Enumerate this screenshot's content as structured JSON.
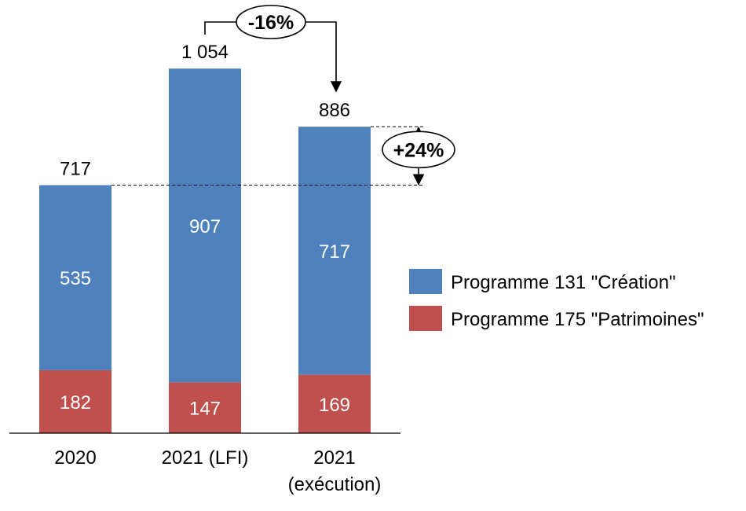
{
  "colors": {
    "series1": "#4F81BD",
    "series2": "#C0504D",
    "axis": "#000000",
    "segment_label": "#ffffff",
    "total_label": "#000000"
  },
  "chart_data": {
    "type": "bar",
    "stacked": true,
    "categories": [
      [
        "2020"
      ],
      [
        "2021 (LFI)"
      ],
      [
        "2021",
        "(exécution)"
      ]
    ],
    "series": [
      {
        "name": "Programme 175 \"Patrimoines\"",
        "values": [
          182,
          147,
          169
        ],
        "color": "#C0504D"
      },
      {
        "name": "Programme 131 \"Création\"",
        "values": [
          535,
          907,
          717
        ],
        "color": "#4F81BD"
      }
    ],
    "totals": [
      "717",
      "1 054",
      "886"
    ],
    "ylim": [
      0,
      1250
    ],
    "grid": false,
    "legend_position": "right",
    "annotations": [
      {
        "label": "-16%",
        "from_category": 1,
        "to_category": 2,
        "type": "bracket-arrow"
      },
      {
        "label": "+24%",
        "from_category": 0,
        "to_category": 2,
        "type": "double-arrow"
      }
    ]
  }
}
